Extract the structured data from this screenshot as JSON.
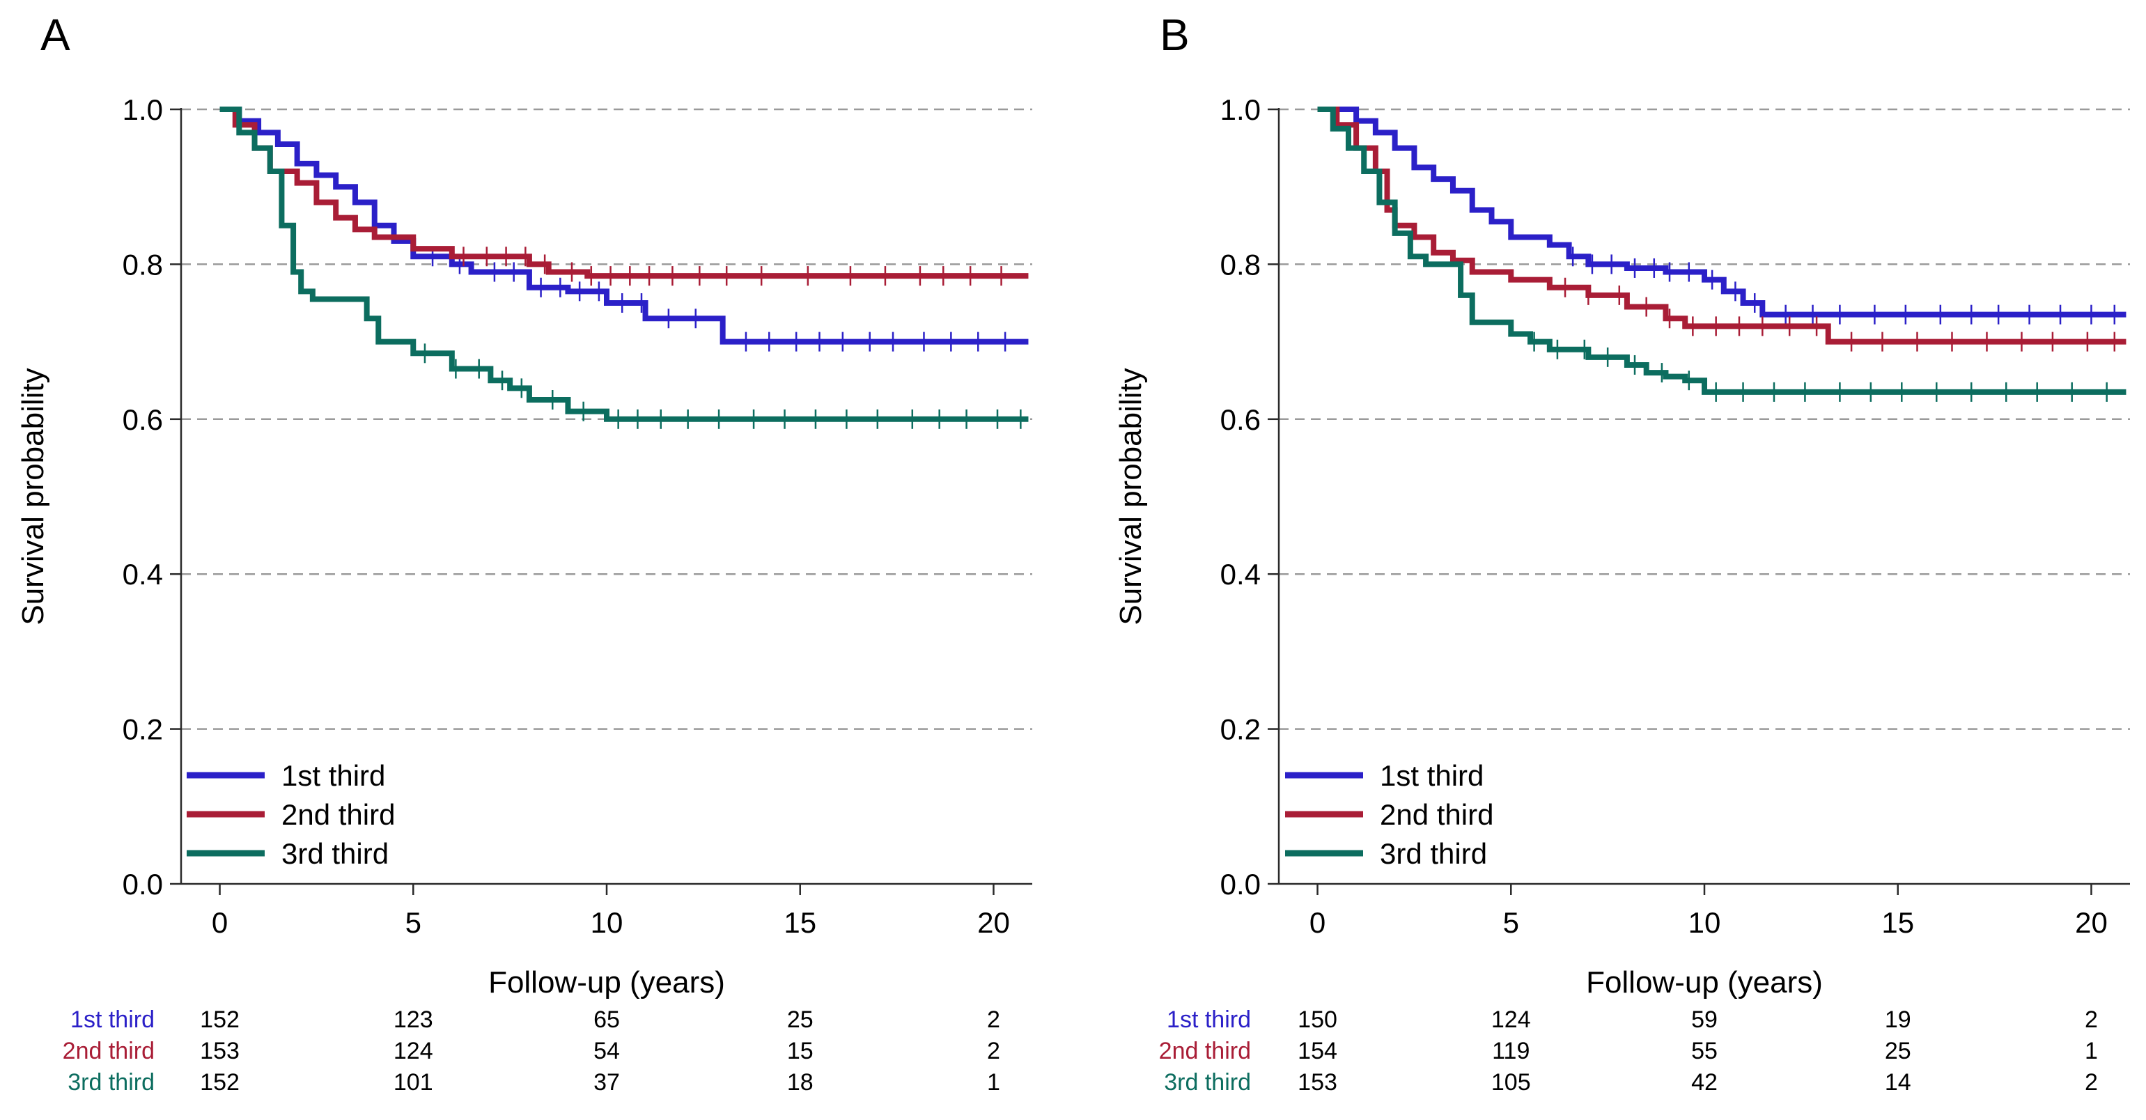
{
  "figure": {
    "colors": {
      "s1": "#2b20c8",
      "s2": "#a91d36",
      "s3": "#0c6d5f",
      "grid": "#9a9a9a",
      "axis": "#2a2a2a"
    },
    "legend_labels": [
      "1st third",
      "2nd third",
      "3rd third"
    ]
  },
  "chart_data": [
    {
      "type": "line",
      "panel_label": "A",
      "xlabel": "Follow-up (years)",
      "ylabel": "Survival probability",
      "xlim": [
        -1,
        21
      ],
      "ylim": [
        0,
        1.0
      ],
      "xticks": [
        "0",
        "5",
        "10",
        "15",
        "20"
      ],
      "yticks": [
        "0.0",
        "0.2",
        "0.4",
        "0.6",
        "0.8",
        "1.0"
      ],
      "grid": "dashed horizontal",
      "legend_position": "bottom-left",
      "series": [
        {
          "name": "1st third",
          "steps": [
            [
              0,
              1.0
            ],
            [
              0.5,
              0.985
            ],
            [
              1.0,
              0.97
            ],
            [
              1.5,
              0.955
            ],
            [
              2.0,
              0.93
            ],
            [
              2.5,
              0.915
            ],
            [
              3.0,
              0.9
            ],
            [
              3.5,
              0.88
            ],
            [
              4.0,
              0.85
            ],
            [
              4.5,
              0.83
            ],
            [
              5.0,
              0.81
            ],
            [
              6.0,
              0.8
            ],
            [
              6.5,
              0.79
            ],
            [
              8.0,
              0.77
            ],
            [
              9.0,
              0.765
            ],
            [
              10.0,
              0.75
            ],
            [
              11.0,
              0.73
            ],
            [
              13.0,
              0.7
            ],
            [
              20.9,
              0.7
            ]
          ],
          "censor": [
            5.5,
            6.2,
            7.1,
            7.6,
            8.3,
            8.8,
            9.3,
            9.8,
            10.4,
            10.9,
            11.6,
            12.3,
            13.6,
            14.2,
            14.9,
            15.5,
            16.1,
            16.8,
            17.4,
            18.2,
            18.9,
            19.6,
            20.3
          ]
        },
        {
          "name": "2nd third",
          "steps": [
            [
              0,
              1.0
            ],
            [
              0.4,
              0.98
            ],
            [
              0.9,
              0.95
            ],
            [
              1.3,
              0.92
            ],
            [
              2.0,
              0.905
            ],
            [
              2.5,
              0.88
            ],
            [
              3.0,
              0.86
            ],
            [
              3.5,
              0.845
            ],
            [
              4.0,
              0.835
            ],
            [
              5.0,
              0.82
            ],
            [
              6.0,
              0.81
            ],
            [
              8.0,
              0.8
            ],
            [
              8.5,
              0.79
            ],
            [
              9.5,
              0.785
            ],
            [
              20.9,
              0.785
            ]
          ],
          "censor": [
            6.3,
            6.9,
            7.4,
            7.9,
            8.4,
            9.1,
            9.6,
            10.1,
            10.6,
            11.1,
            11.7,
            12.4,
            13.1,
            14.0,
            15.2,
            16.3,
            17.2,
            18.1,
            18.7,
            19.4,
            20.2
          ]
        },
        {
          "name": "3rd third",
          "steps": [
            [
              0,
              1.0
            ],
            [
              0.5,
              0.97
            ],
            [
              0.9,
              0.95
            ],
            [
              1.3,
              0.92
            ],
            [
              1.6,
              0.85
            ],
            [
              1.9,
              0.79
            ],
            [
              2.1,
              0.765
            ],
            [
              2.4,
              0.755
            ],
            [
              3.8,
              0.73
            ],
            [
              4.1,
              0.7
            ],
            [
              5.0,
              0.685
            ],
            [
              6.0,
              0.665
            ],
            [
              7.0,
              0.65
            ],
            [
              7.5,
              0.64
            ],
            [
              8.0,
              0.625
            ],
            [
              9.0,
              0.61
            ],
            [
              10.0,
              0.6
            ],
            [
              20.9,
              0.6
            ]
          ],
          "censor": [
            5.3,
            6.1,
            6.7,
            7.3,
            7.8,
            8.6,
            9.4,
            10.3,
            10.8,
            11.4,
            12.1,
            12.9,
            13.8,
            14.6,
            15.4,
            16.2,
            17.0,
            17.9,
            18.6,
            19.3,
            20.1,
            20.7
          ]
        }
      ],
      "risk_table": {
        "rows": [
          {
            "label": "1st third",
            "values": [
              "152",
              "123",
              "65",
              "25",
              "2"
            ]
          },
          {
            "label": "2nd third",
            "values": [
              "153",
              "124",
              "54",
              "15",
              "2"
            ]
          },
          {
            "label": "3rd third",
            "values": [
              "152",
              "101",
              "37",
              "18",
              "1"
            ]
          }
        ]
      }
    },
    {
      "type": "line",
      "panel_label": "B",
      "xlabel": "Follow-up (years)",
      "ylabel": "Survival probability",
      "xlim": [
        -1,
        21
      ],
      "ylim": [
        0,
        1.0
      ],
      "xticks": [
        "0",
        "5",
        "10",
        "15",
        "20"
      ],
      "yticks": [
        "0.0",
        "0.2",
        "0.4",
        "0.6",
        "0.8",
        "1.0"
      ],
      "grid": "dashed horizontal",
      "legend_position": "bottom-left",
      "series": [
        {
          "name": "1st third",
          "steps": [
            [
              0,
              1.0
            ],
            [
              1.0,
              0.985
            ],
            [
              1.5,
              0.97
            ],
            [
              2.0,
              0.95
            ],
            [
              2.5,
              0.925
            ],
            [
              3.0,
              0.91
            ],
            [
              3.5,
              0.895
            ],
            [
              4.0,
              0.87
            ],
            [
              4.5,
              0.855
            ],
            [
              5.0,
              0.835
            ],
            [
              6.0,
              0.825
            ],
            [
              6.5,
              0.81
            ],
            [
              7.0,
              0.8
            ],
            [
              8.0,
              0.795
            ],
            [
              9.0,
              0.79
            ],
            [
              10.0,
              0.78
            ],
            [
              10.5,
              0.765
            ],
            [
              11.0,
              0.75
            ],
            [
              11.5,
              0.735
            ],
            [
              20.9,
              0.735
            ]
          ],
          "censor": [
            6.6,
            7.1,
            7.6,
            8.2,
            8.7,
            9.1,
            9.6,
            10.2,
            10.8,
            11.3,
            12.1,
            12.8,
            13.5,
            14.4,
            15.2,
            16.1,
            16.9,
            17.6,
            18.4,
            19.2,
            20.0,
            20.6
          ]
        },
        {
          "name": "2nd third",
          "steps": [
            [
              0,
              1.0
            ],
            [
              0.5,
              0.98
            ],
            [
              1.0,
              0.95
            ],
            [
              1.5,
              0.92
            ],
            [
              1.8,
              0.87
            ],
            [
              2.0,
              0.85
            ],
            [
              2.5,
              0.835
            ],
            [
              3.0,
              0.815
            ],
            [
              3.5,
              0.805
            ],
            [
              4.0,
              0.79
            ],
            [
              5.0,
              0.78
            ],
            [
              6.0,
              0.77
            ],
            [
              7.0,
              0.76
            ],
            [
              8.0,
              0.745
            ],
            [
              9.0,
              0.73
            ],
            [
              9.5,
              0.72
            ],
            [
              13.2,
              0.7
            ],
            [
              20.9,
              0.7
            ]
          ],
          "censor": [
            6.4,
            7.0,
            7.8,
            8.5,
            9.1,
            9.7,
            10.3,
            10.9,
            11.5,
            12.2,
            12.9,
            13.8,
            14.6,
            15.5,
            16.4,
            17.3,
            18.2,
            19.0,
            19.9,
            20.6
          ]
        },
        {
          "name": "3rd third",
          "steps": [
            [
              0,
              1.0
            ],
            [
              0.4,
              0.975
            ],
            [
              0.8,
              0.95
            ],
            [
              1.2,
              0.92
            ],
            [
              1.6,
              0.88
            ],
            [
              2.0,
              0.84
            ],
            [
              2.4,
              0.81
            ],
            [
              2.8,
              0.8
            ],
            [
              3.7,
              0.76
            ],
            [
              4.0,
              0.725
            ],
            [
              5.0,
              0.71
            ],
            [
              5.5,
              0.7
            ],
            [
              6.0,
              0.69
            ],
            [
              7.0,
              0.68
            ],
            [
              8.0,
              0.67
            ],
            [
              8.5,
              0.66
            ],
            [
              9.0,
              0.655
            ],
            [
              9.5,
              0.65
            ],
            [
              10.0,
              0.635
            ],
            [
              20.9,
              0.635
            ]
          ],
          "censor": [
            5.6,
            6.2,
            6.9,
            7.5,
            8.2,
            8.9,
            9.6,
            10.3,
            11.0,
            11.8,
            12.6,
            13.5,
            14.3,
            15.1,
            16.0,
            16.9,
            17.8,
            18.6,
            19.5,
            20.4
          ]
        }
      ],
      "risk_table": {
        "rows": [
          {
            "label": "1st third",
            "values": [
              "150",
              "124",
              "59",
              "19",
              "2"
            ]
          },
          {
            "label": "2nd third",
            "values": [
              "154",
              "119",
              "55",
              "25",
              "1"
            ]
          },
          {
            "label": "3rd third",
            "values": [
              "153",
              "105",
              "42",
              "14",
              "2"
            ]
          }
        ]
      }
    }
  ]
}
